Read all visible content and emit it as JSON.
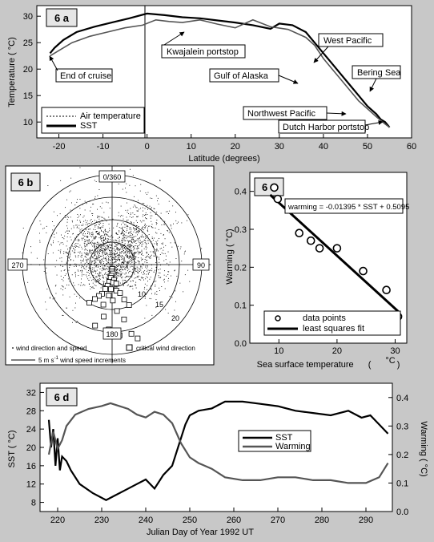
{
  "chart_data": [
    {
      "id": "6 a",
      "type": "line",
      "xlabel": "Latitude (degrees)",
      "ylabel": "Temperature  (  °C)",
      "xlim": [
        -25,
        60
      ],
      "ylim": [
        7,
        32
      ],
      "xticks": [
        -20,
        -10,
        0,
        10,
        20,
        30,
        40,
        50,
        60
      ],
      "yticks": [
        10,
        15,
        20,
        25,
        30
      ],
      "grid": false,
      "legend_position": "bottom-left",
      "series": [
        {
          "name": "SST",
          "color": "#000000",
          "x": [
            -22,
            -21,
            -19,
            -16,
            -12,
            -8,
            -4,
            0,
            4,
            8,
            12,
            16,
            20,
            24,
            28,
            30,
            33,
            36,
            38,
            40,
            42,
            44,
            46,
            48,
            50,
            52,
            53,
            54,
            55
          ],
          "y": [
            23.0,
            24.0,
            25.5,
            27.0,
            28.0,
            28.8,
            29.6,
            30.5,
            30.2,
            29.8,
            29.6,
            29.2,
            28.8,
            28.3,
            27.6,
            28.6,
            28.3,
            27.0,
            25.0,
            23.0,
            21.0,
            19.0,
            17.0,
            15.0,
            13.0,
            11.5,
            10.5,
            10.0,
            9.0
          ]
        },
        {
          "name": "Air temperature",
          "color": "#555555",
          "x": [
            -22,
            -20,
            -17,
            -13,
            -9,
            -5,
            -1,
            2,
            5,
            8,
            12,
            16,
            20,
            24,
            28,
            32,
            36,
            38,
            40,
            42,
            44,
            46,
            48,
            50,
            52,
            53,
            54,
            55
          ],
          "y": [
            22.5,
            23.5,
            25.0,
            26.2,
            27.0,
            27.8,
            28.3,
            29.3,
            29.0,
            28.8,
            29.3,
            28.5,
            27.8,
            29.3,
            28.0,
            27.5,
            26.0,
            24.5,
            22.0,
            20.0,
            18.0,
            16.0,
            14.0,
            12.5,
            11.0,
            10.3,
            9.6,
            9.0
          ]
        }
      ],
      "annotations": [
        "Kwajalein portstop",
        "West Pacific",
        "End of cruise",
        "Gulf of Alaska",
        "Bering Sea",
        "Northwest Pacific",
        "Dutch Harbor portstop"
      ]
    },
    {
      "id": "6 b",
      "type": "scatter",
      "compass_labels": [
        "0/360",
        "90",
        "180",
        "270"
      ],
      "ring_labels": [
        "10",
        "15",
        "20"
      ],
      "ring_speeds": [
        5,
        10,
        15,
        20
      ],
      "critical_points": [
        {
          "dir": 178,
          "speed": 1
        },
        {
          "dir": 182,
          "speed": 1.5
        },
        {
          "dir": 172,
          "speed": 2
        },
        {
          "dir": 186,
          "speed": 2.5
        },
        {
          "dir": 190,
          "speed": 3
        },
        {
          "dir": 168,
          "speed": 3.5
        },
        {
          "dir": 195,
          "speed": 4
        },
        {
          "dir": 175,
          "speed": 4
        },
        {
          "dir": 160,
          "speed": 4.5
        },
        {
          "dir": 200,
          "speed": 5
        },
        {
          "dir": 185,
          "speed": 5.5
        },
        {
          "dir": 165,
          "speed": 6
        },
        {
          "dir": 205,
          "speed": 6
        },
        {
          "dir": 190,
          "speed": 7
        },
        {
          "dir": 155,
          "speed": 7
        },
        {
          "dir": 210,
          "speed": 7.5
        },
        {
          "dir": 178,
          "speed": 8
        },
        {
          "dir": 215,
          "speed": 8.5
        },
        {
          "dir": 150,
          "speed": 9
        },
        {
          "dir": 200,
          "speed": 9.5
        },
        {
          "dir": 220,
          "speed": 10
        },
        {
          "dir": 170,
          "speed": 10.5
        },
        {
          "dir": 145,
          "speed": 11
        },
        {
          "dir": 195,
          "speed": 12
        },
        {
          "dir": 225,
          "speed": 12
        },
        {
          "dir": 160,
          "speed": 13
        },
        {
          "dir": 185,
          "speed": 14.5
        },
        {
          "dir": 205,
          "speed": 15
        },
        {
          "dir": 170,
          "speed": 16
        },
        {
          "dir": 155,
          "speed": 17
        },
        {
          "dir": 150,
          "speed": 19
        }
      ],
      "legend": {
        "wind": "wind direction and speed",
        "critical": "critical wind direction",
        "increments": "5 m s",
        "increments_sup": "-1",
        "increments_rest": " wind speed increments"
      }
    },
    {
      "id": "6 c",
      "type": "scatter",
      "xlabel": "Sea surface temperature",
      "xunit": "°C",
      "ylabel": "Warming  ( °C)",
      "xlim": [
        5,
        32
      ],
      "ylim": [
        0.0,
        0.45
      ],
      "xticks": [
        10,
        20,
        30
      ],
      "yticks": [
        0.0,
        0.1,
        0.2,
        0.3,
        0.4
      ],
      "points": [
        [
          9.2,
          0.41
        ],
        [
          9.8,
          0.38
        ],
        [
          13.5,
          0.29
        ],
        [
          15.5,
          0.27
        ],
        [
          17.0,
          0.25
        ],
        [
          20.0,
          0.25
        ],
        [
          24.5,
          0.19
        ],
        [
          28.5,
          0.14
        ],
        [
          30.5,
          0.07
        ]
      ],
      "fit": {
        "slope": -0.01395,
        "intercept": 0.5095,
        "x_range": [
          8.5,
          30.5
        ]
      },
      "equation": "warming = -0.01395 * SST + 0.5095",
      "legend": [
        "data points",
        "least squares fit"
      ]
    },
    {
      "id": "6 d",
      "type": "line",
      "xlabel": "Julian Day of Year 1992   UT",
      "ylabel_left": "SST  ( °C)",
      "ylabel_right": "Warming ( °C)",
      "xlim": [
        216,
        296
      ],
      "ylim_left": [
        6,
        34
      ],
      "ylim_right": [
        0.0,
        0.45
      ],
      "xticks": [
        220,
        230,
        240,
        250,
        260,
        270,
        280,
        290
      ],
      "yticks_left": [
        8,
        12,
        16,
        20,
        24,
        28,
        32
      ],
      "yticks_right": [
        0.0,
        0.1,
        0.2,
        0.3,
        0.4
      ],
      "series": [
        {
          "name": "SST",
          "axis": "left",
          "color": "#000000",
          "x": [
            218,
            218.5,
            219,
            219.5,
            220,
            220.5,
            221,
            222,
            223,
            225,
            228,
            231,
            233,
            235,
            238,
            240,
            242,
            244,
            246,
            248,
            249,
            250,
            252,
            255,
            258,
            262,
            266,
            270,
            274,
            278,
            282,
            286,
            289,
            291,
            293,
            295
          ],
          "y": [
            26,
            20,
            24,
            16,
            22,
            15,
            18,
            17,
            15,
            12,
            10,
            8.5,
            9.5,
            10.5,
            12,
            13,
            11,
            14,
            16,
            22,
            25,
            27,
            28,
            28.5,
            30,
            30,
            29.5,
            29,
            28,
            27.5,
            27,
            28,
            26.5,
            27,
            25,
            23
          ]
        },
        {
          "name": "Warming",
          "axis": "right",
          "color": "#555555",
          "x": [
            218,
            219,
            220,
            221,
            222,
            224,
            227,
            230,
            232,
            234,
            236,
            238,
            240,
            242,
            244,
            246,
            248,
            250,
            252,
            255,
            258,
            262,
            266,
            270,
            274,
            278,
            282,
            286,
            290,
            293,
            295
          ],
          "y": [
            0.2,
            0.28,
            0.22,
            0.25,
            0.3,
            0.34,
            0.36,
            0.37,
            0.38,
            0.37,
            0.36,
            0.34,
            0.33,
            0.35,
            0.34,
            0.31,
            0.24,
            0.19,
            0.17,
            0.15,
            0.12,
            0.11,
            0.11,
            0.12,
            0.12,
            0.11,
            0.11,
            0.1,
            0.1,
            0.12,
            0.17
          ]
        }
      ],
      "legend_position": "center"
    }
  ]
}
